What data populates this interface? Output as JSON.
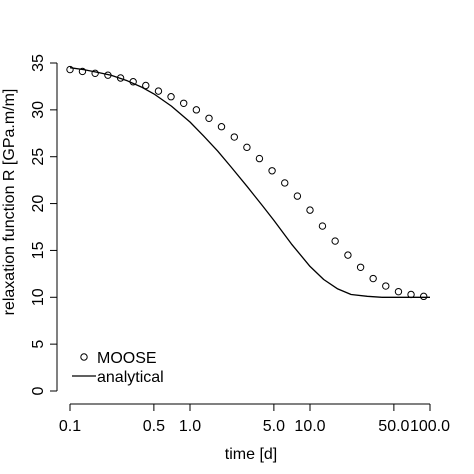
{
  "chart_data": {
    "type": "line",
    "xlabel": "time [d]",
    "ylabel": "relaxation function R [GPa.m/m]",
    "x_scale": "log",
    "xlim": [
      0.1,
      100
    ],
    "ylim": [
      0,
      35
    ],
    "grid": false,
    "legend_position": "bottom-left",
    "x_ticks": [
      {
        "value": 0.1,
        "label": "0.1"
      },
      {
        "value": 0.5,
        "label": "0.5"
      },
      {
        "value": 1,
        "label": "1.0"
      },
      {
        "value": 5,
        "label": "5.0"
      },
      {
        "value": 10,
        "label": "10.0"
      },
      {
        "value": 50,
        "label": "50.0"
      },
      {
        "value": 100,
        "label": "100.0"
      }
    ],
    "y_ticks": [
      0,
      5,
      10,
      15,
      20,
      25,
      30,
      35
    ],
    "series": [
      {
        "name": "MOOSE",
        "style": "points",
        "marker": "open-circle",
        "x": [
          0.1,
          0.127,
          0.162,
          0.207,
          0.264,
          0.336,
          0.428,
          0.546,
          0.695,
          0.886,
          1.13,
          1.44,
          1.83,
          2.34,
          2.98,
          3.79,
          4.83,
          6.16,
          7.85,
          10.0,
          12.7,
          16.2,
          20.7,
          26.4,
          33.6,
          42.8,
          54.6,
          69.5,
          88.6
        ],
        "y": [
          34.3,
          34.1,
          33.9,
          33.7,
          33.4,
          33.0,
          32.6,
          32.0,
          31.4,
          30.7,
          30.0,
          29.1,
          28.2,
          27.1,
          26.0,
          24.8,
          23.5,
          22.2,
          20.8,
          19.3,
          17.6,
          16.0,
          14.5,
          13.2,
          12.0,
          11.2,
          10.6,
          10.3,
          10.1
        ]
      },
      {
        "name": "analytical",
        "style": "line",
        "x": [
          0.1,
          0.13,
          0.17,
          0.22,
          0.3,
          0.4,
          0.5,
          0.7,
          1.0,
          1.3,
          1.7,
          2.2,
          3.0,
          4.0,
          5.0,
          7.0,
          10.0,
          13.0,
          17.0,
          22.0,
          30.0,
          40.0,
          50.0,
          70.0,
          100.0
        ],
        "y": [
          34.5,
          34.3,
          34.0,
          33.7,
          33.1,
          32.4,
          31.7,
          30.4,
          28.7,
          27.2,
          25.6,
          23.9,
          21.8,
          19.8,
          18.2,
          15.7,
          13.3,
          11.9,
          10.9,
          10.3,
          10.1,
          10.0,
          10.0,
          10.0,
          10.0
        ]
      }
    ]
  }
}
